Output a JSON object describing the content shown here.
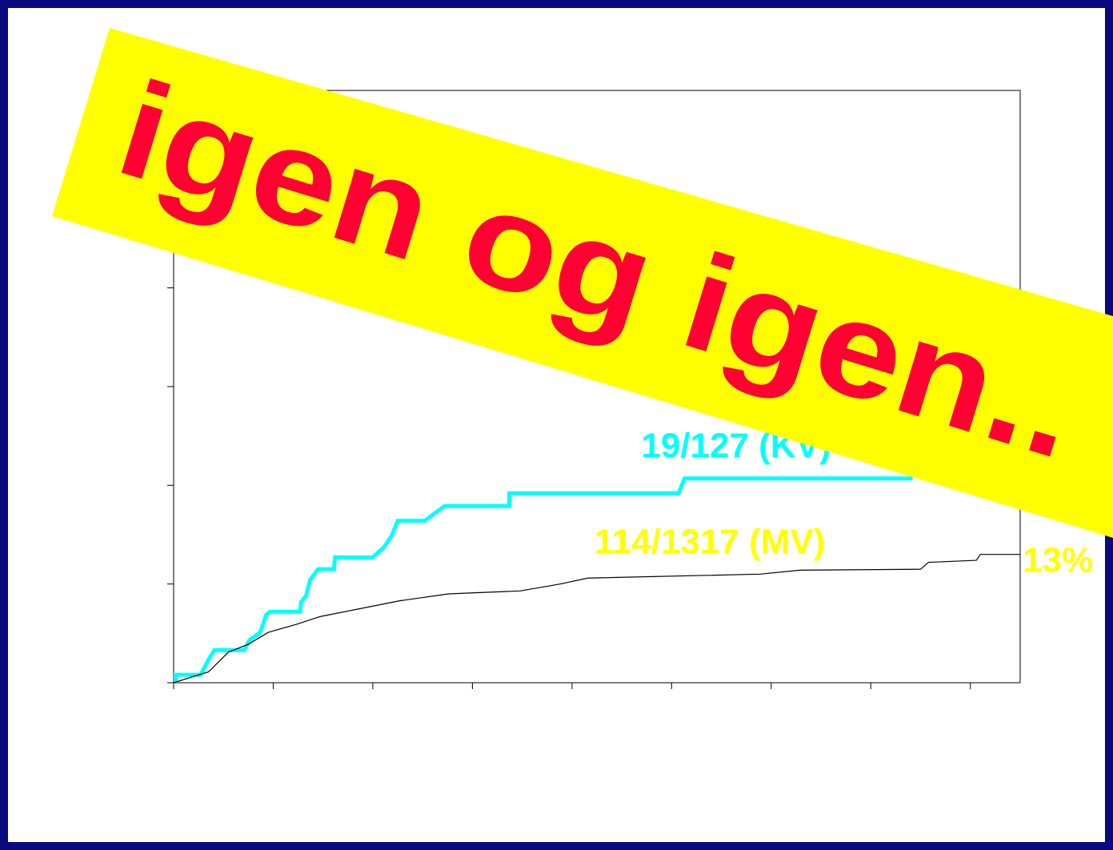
{
  "chart_data": {
    "type": "line",
    "banner": "igen og igen..",
    "end_label": "13%",
    "xlim": [
      0,
      8.5
    ],
    "xticks": [
      0,
      1,
      2,
      3,
      4,
      5,
      6,
      7,
      8
    ],
    "ylim": [
      0,
      60
    ],
    "yticks": [
      0,
      10,
      20,
      30,
      40,
      50
    ],
    "series": [
      {
        "name": "19/127 (KV)",
        "color": "#00ffff",
        "x": [
          0.02,
          0.02,
          0.27,
          0.36,
          0.41,
          0.71,
          0.76,
          0.87,
          0.93,
          0.97,
          1.27,
          1.28,
          1.33,
          1.37,
          1.45,
          1.61,
          1.62,
          2.0,
          2.11,
          2.19,
          2.25,
          2.52,
          2.72,
          3.37,
          3.37,
          5.07,
          5.13,
          7.42
        ],
        "values": [
          0,
          0.8,
          0.8,
          2.5,
          3.3,
          3.3,
          4.3,
          5.1,
          6.9,
          7.2,
          7.2,
          8.2,
          8.8,
          10.4,
          11.5,
          11.5,
          12.7,
          12.7,
          13.7,
          14.9,
          16.4,
          16.4,
          17.9,
          17.9,
          19.2,
          19.2,
          20.7,
          20.7
        ]
      },
      {
        "name": "114/1317 (MV)",
        "color": "#000000",
        "x": [
          0,
          0.35,
          0.55,
          0.75,
          0.95,
          1.23,
          1.47,
          1.87,
          2.27,
          2.76,
          3.48,
          3.88,
          4.16,
          5.89,
          6.29,
          7.5,
          7.58,
          8.06,
          8.1,
          8.5
        ],
        "values": [
          0,
          1.1,
          3.1,
          3.9,
          5.1,
          5.9,
          6.7,
          7.5,
          8.3,
          9.0,
          9.3,
          10.0,
          10.6,
          11.0,
          11.4,
          11.5,
          12.2,
          12.4,
          13.0,
          13.0
        ]
      }
    ]
  }
}
